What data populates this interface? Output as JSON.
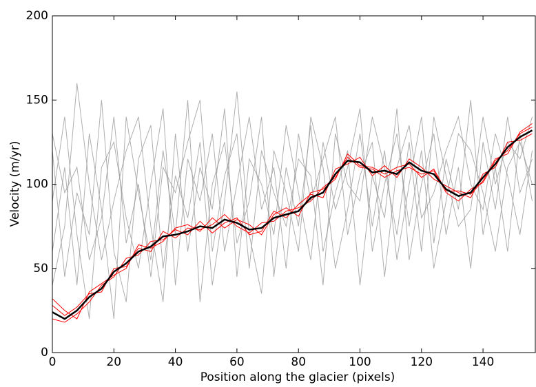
{
  "chart_data": {
    "type": "line",
    "xlabel": "Position along the glacier (pixels)",
    "ylabel": "Velocity (m/yr)",
    "x": [
      0,
      4,
      8,
      12,
      16,
      20,
      24,
      28,
      32,
      36,
      40,
      44,
      48,
      52,
      56,
      60,
      64,
      68,
      72,
      76,
      80,
      84,
      88,
      92,
      96,
      100,
      104,
      108,
      112,
      116,
      120,
      124,
      128,
      132,
      136,
      140,
      144,
      148,
      152,
      156
    ],
    "series": [
      {
        "color": "#9a9a9a",
        "values": [
          60,
          110,
          40,
          130,
          85,
          20,
          140,
          95,
          55,
          120,
          70,
          150,
          30,
          100,
          125,
          65,
          90,
          140,
          45,
          110,
          75,
          135,
          60,
          95,
          120,
          40,
          105,
          80,
          145,
          55,
          100,
          130,
          70,
          110,
          50,
          125,
          85,
          140,
          95,
          115
        ]
      },
      {
        "color": "#9a9a9a",
        "values": [
          120,
          45,
          95,
          70,
          150,
          60,
          30,
          115,
          135,
          50,
          105,
          80,
          125,
          40,
          90,
          155,
          70,
          35,
          120,
          95,
          60,
          140,
          110,
          50,
          85,
          130,
          75,
          120,
          55,
          100,
          140,
          65,
          115,
          85,
          150,
          70,
          110,
          60,
          130,
          90
        ]
      },
      {
        "color": "#9a9a9a",
        "values": [
          90,
          140,
          70,
          20,
          110,
          125,
          80,
          50,
          100,
          145,
          40,
          115,
          90,
          130,
          60,
          100,
          140,
          85,
          110,
          50,
          130,
          90,
          115,
          140,
          70,
          105,
          125,
          45,
          110,
          135,
          80,
          95,
          120,
          140,
          100,
          85,
          130,
          105,
          70,
          120
        ]
      },
      {
        "color": "#9a9a9a",
        "values": [
          40,
          75,
          160,
          100,
          55,
          90,
          120,
          140,
          75,
          30,
          130,
          60,
          110,
          85,
          145,
          45,
          115,
          100,
          70,
          135,
          95,
          55,
          125,
          85,
          110,
          145,
          60,
          100,
          130,
          75,
          120,
          50,
          90,
          130,
          120,
          95,
          60,
          110,
          125,
          100
        ]
      },
      {
        "color": "#9a9a9a",
        "values": [
          130,
          95,
          110,
          55,
          80,
          140,
          65,
          100,
          45,
          110,
          95,
          125,
          150,
          60,
          105,
          130,
          50,
          120,
          95,
          75,
          115,
          105,
          40,
          130,
          100,
          90,
          140,
          110,
          70,
          125,
          60,
          140,
          105,
          75,
          85,
          140,
          100,
          125,
          115,
          140
        ]
      },
      {
        "color": "#ff0000",
        "values": [
          28,
          22,
          27,
          35,
          36,
          50,
          51,
          62,
          60,
          72,
          68,
          74,
          73,
          76,
          82,
          75,
          71,
          77,
          78,
          84,
          86,
          90,
          98,
          104,
          116,
          110,
          109,
          104,
          108,
          110,
          106,
          108,
          95,
          90,
          97,
          101,
          114,
          120,
          130,
          134
        ]
      },
      {
        "color": "#ff0000",
        "values": [
          20,
          18,
          23,
          30,
          40,
          45,
          56,
          58,
          66,
          67,
          73,
          70,
          78,
          71,
          77,
          80,
          70,
          72,
          84,
          80,
          88,
          94,
          92,
          109,
          112,
          116,
          105,
          111,
          104,
          115,
          110,
          103,
          99,
          95,
          92,
          106,
          110,
          125,
          126,
          130
        ]
      },
      {
        "color": "#ff0000",
        "values": [
          32,
          25,
          20,
          36,
          41,
          46,
          50,
          64,
          62,
          66,
          74,
          76,
          72,
          80,
          74,
          79,
          76,
          70,
          82,
          86,
          81,
          95,
          97,
          103,
          118,
          111,
          110,
          106,
          110,
          112,
          104,
          109,
          96,
          96,
          94,
          102,
          115,
          118,
          131,
          136
        ]
      },
      {
        "color": "#000000",
        "values": [
          24,
          20,
          25,
          33,
          38,
          48,
          53,
          60,
          63,
          69,
          70,
          72,
          75,
          74,
          79,
          77,
          73,
          74,
          80,
          82,
          84,
          92,
          95,
          106,
          114,
          113,
          107,
          108,
          106,
          113,
          108,
          106,
          97,
          93,
          95,
          104,
          112,
          122,
          128,
          132
        ]
      }
    ],
    "xlim": [
      0,
      157
    ],
    "xticks": [
      0,
      20,
      40,
      60,
      80,
      100,
      120,
      140
    ],
    "ylim": [
      0,
      200
    ],
    "yticks": [
      0,
      50,
      100,
      150,
      200
    ]
  }
}
